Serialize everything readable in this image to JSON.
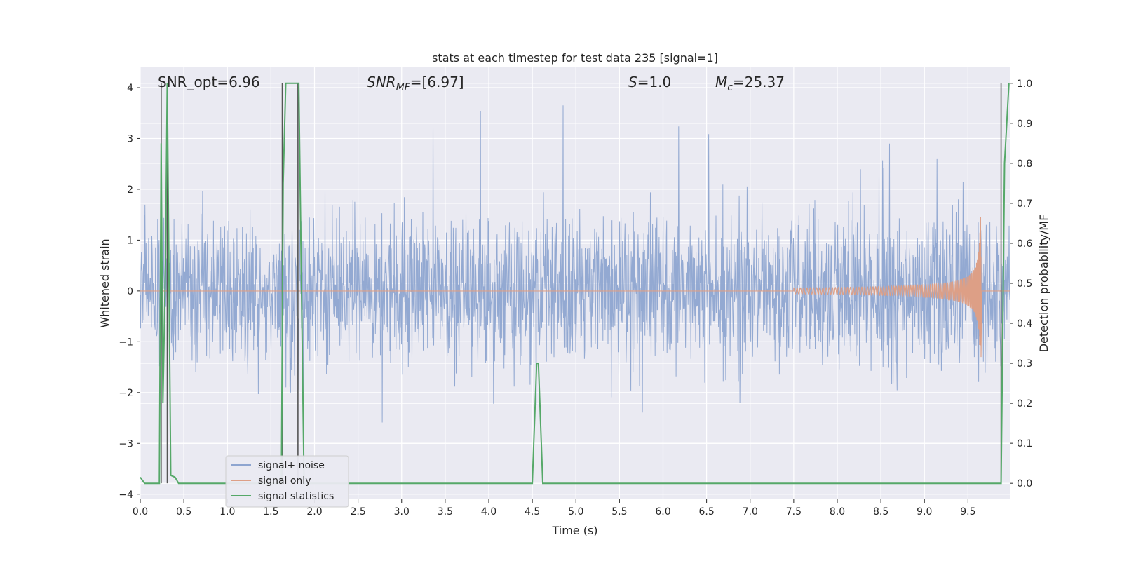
{
  "chart_data": {
    "type": "line",
    "title": "stats at each timestep for test data 235 [signal=1]",
    "xlabel": "Time (s)",
    "ylabel": "Whitened strain",
    "ylabel_right": "Detection probability/MF",
    "xlim": [
      0.0,
      9.98
    ],
    "ylim": [
      -4.1,
      4.4
    ],
    "ylim_right": [
      -0.04,
      1.04
    ],
    "xticks": [
      0.0,
      0.5,
      1.0,
      1.5,
      2.0,
      2.5,
      3.0,
      3.5,
      4.0,
      4.5,
      5.0,
      5.5,
      6.0,
      6.5,
      7.0,
      7.5,
      8.0,
      8.5,
      9.0,
      9.5
    ],
    "xtick_labels": [
      "0.0",
      "0.5",
      "1.0",
      "1.5",
      "2.0",
      "2.5",
      "3.0",
      "3.5",
      "4.0",
      "4.5",
      "5.0",
      "5.5",
      "6.0",
      "6.5",
      "7.0",
      "7.5",
      "8.0",
      "8.5",
      "9.0",
      "9.5"
    ],
    "yticks": [
      4,
      3,
      2,
      1,
      0,
      -1,
      -2,
      -3,
      -4
    ],
    "ytick_labels": [
      "4",
      "3",
      "2",
      "1",
      "0",
      "−1",
      "−2",
      "−3",
      "−4"
    ],
    "yticks_right": [
      1.0,
      0.9,
      0.8,
      0.7,
      0.6,
      0.5,
      0.4,
      0.3,
      0.2,
      0.1,
      0.0
    ],
    "ytick_labels_right": [
      "1.0",
      "0.9",
      "0.8",
      "0.7",
      "0.6",
      "0.5",
      "0.4",
      "0.3",
      "0.2",
      "0.1",
      "0.0"
    ],
    "grid": true,
    "annotations": {
      "snr_opt": "SNR_opt=6.96",
      "snr_mf_main": "SNR",
      "snr_mf_sub": "MF",
      "snr_mf_value": "=[6.97]",
      "s_main": "S",
      "s_value": "=1.0",
      "mc_main": "M",
      "mc_sub": "c",
      "mc_value": "=25.37"
    },
    "legend_position": "lower-left",
    "series": [
      {
        "name": "signal+ noise",
        "color": "#8ea5d0",
        "kind": "noise",
        "amplitude_typical": 1.4,
        "amplitude_peak": 4.0
      },
      {
        "name": "signal only",
        "color": "#dd9f86",
        "kind": "chirp",
        "start_time": 7.5,
        "merger_time": 9.65,
        "peak_amplitude": 1.45,
        "trough_amplitude": -1.3
      },
      {
        "name": "signal statistics",
        "color": "#55a868",
        "axis": "right",
        "x": [
          0.0,
          0.05,
          0.22,
          0.24,
          0.26,
          0.29,
          0.31,
          0.35,
          0.4,
          0.44,
          1.62,
          1.64,
          1.67,
          1.82,
          1.88,
          4.5,
          4.55,
          4.57,
          4.62,
          9.88,
          9.92,
          9.97
        ],
        "y": [
          0.015,
          0.0,
          0.0,
          0.85,
          0.2,
          0.55,
          1.0,
          0.02,
          0.015,
          0.0,
          0.0,
          0.75,
          1.0,
          1.0,
          0.0,
          0.0,
          0.3,
          0.3,
          0.0,
          0.0,
          0.8,
          1.0
        ]
      }
    ],
    "marker_lines": {
      "color": "#555555",
      "x": [
        0.24,
        0.31,
        1.63,
        1.81,
        9.88
      ]
    }
  }
}
